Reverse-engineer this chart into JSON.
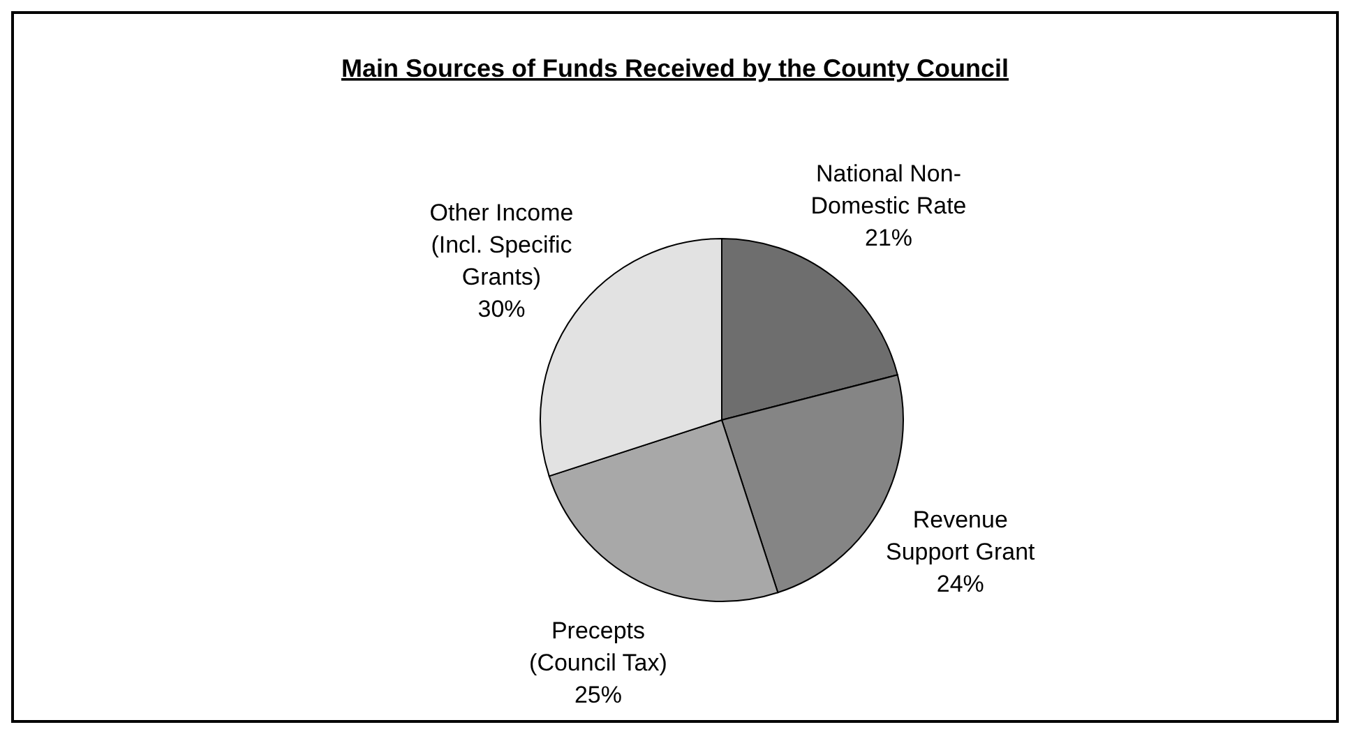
{
  "chart_data": {
    "type": "pie",
    "title": "Main Sources of Funds Received by the County Council",
    "categories": [
      "National Non-\nDomestic Rate",
      "Revenue\nSupport Grant",
      "Precepts\n(Council Tax)",
      "Other Income\n(Incl. Specific\nGrants)"
    ],
    "values": [
      21,
      24,
      25,
      30
    ],
    "colors": [
      "#6e6e6e",
      "#858585",
      "#a8a8a8",
      "#e2e2e2"
    ],
    "value_labels": [
      "21%",
      "24%",
      "25%",
      "30%"
    ]
  }
}
